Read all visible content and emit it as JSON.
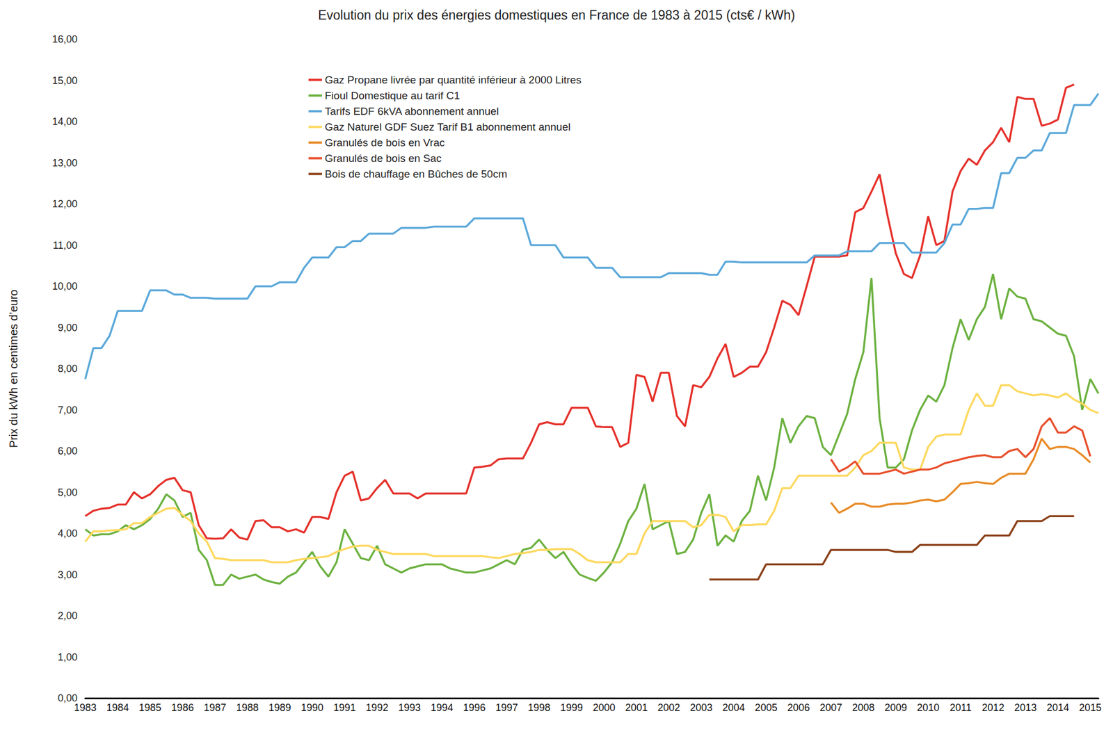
{
  "chart_data": {
    "type": "line",
    "title": "Evolution du prix des énergies domestiques en France de 1983 à 2015 (cts€ / kWh)",
    "y_label": "Prix du kWh en centimes d’euro",
    "categories": [
      "1983",
      null,
      null,
      null,
      "1984",
      null,
      null,
      null,
      "1985",
      null,
      null,
      null,
      "1986",
      null,
      null,
      null,
      "1987",
      null,
      null,
      null,
      "1988",
      null,
      null,
      null,
      "1989",
      null,
      null,
      null,
      "1990",
      null,
      null,
      null,
      "1991",
      null,
      null,
      null,
      "1992",
      null,
      null,
      null,
      "1993",
      null,
      null,
      null,
      "1994",
      null,
      null,
      null,
      "1996",
      null,
      null,
      null,
      "1997",
      null,
      null,
      null,
      "1998",
      null,
      null,
      null,
      "1999",
      null,
      null,
      null,
      "2000",
      null,
      null,
      null,
      "2001",
      null,
      null,
      null,
      "2002",
      null,
      null,
      null,
      "2003",
      null,
      null,
      null,
      "2004",
      null,
      null,
      null,
      "2005",
      null,
      null,
      null,
      "2006",
      null,
      null,
      null,
      "2007",
      null,
      null,
      null,
      "2008",
      null,
      null,
      null,
      "2009",
      null,
      null,
      null,
      "2010",
      null,
      null,
      null,
      "2011",
      null,
      null,
      null,
      "2012",
      null,
      null,
      null,
      "2013",
      null,
      null,
      null,
      "2014",
      null,
      null,
      null,
      "2015",
      null
    ],
    "series": [
      {
        "name": "Gaz Propane livrée par quantité inférieur à 2000 Litres",
        "color": "#e5302a",
        "values": [
          4.42,
          4.55,
          4.6,
          4.62,
          4.7,
          4.7,
          5.0,
          4.85,
          4.95,
          5.15,
          5.3,
          5.35,
          5.05,
          5.0,
          4.2,
          3.88,
          3.87,
          3.88,
          4.1,
          3.9,
          3.85,
          4.3,
          4.32,
          4.15,
          4.15,
          4.05,
          4.1,
          4.02,
          4.4,
          4.4,
          4.35,
          5.0,
          5.4,
          5.5,
          4.8,
          4.85,
          5.1,
          5.3,
          4.97,
          4.97,
          4.97,
          4.85,
          4.97,
          4.97,
          4.97,
          4.97,
          4.97,
          4.97,
          5.6,
          5.62,
          5.65,
          5.8,
          5.82,
          5.82,
          5.82,
          6.2,
          6.65,
          6.7,
          6.65,
          6.65,
          7.05,
          7.05,
          7.05,
          6.6,
          6.58,
          6.58,
          6.1,
          6.2,
          7.85,
          7.8,
          7.2,
          7.9,
          7.9,
          6.85,
          6.6,
          7.6,
          7.55,
          7.8,
          8.25,
          8.6,
          7.8,
          7.9,
          8.05,
          8.05,
          8.4,
          9.0,
          9.65,
          9.55,
          9.3,
          10.0,
          10.72,
          10.72,
          10.72,
          10.72,
          10.75,
          11.8,
          11.9,
          12.3,
          12.72,
          11.7,
          10.8,
          10.3,
          10.2,
          10.75,
          11.7,
          11.0,
          11.1,
          12.3,
          12.8,
          13.1,
          12.95,
          13.3,
          13.5,
          13.85,
          13.5,
          14.6,
          14.55,
          14.55,
          13.9,
          13.95,
          14.05,
          14.82,
          14.9,
          null,
          null,
          null
        ]
      },
      {
        "name": "Fioul Domestique au tarif C1",
        "color": "#6bb13f",
        "values": [
          4.1,
          3.95,
          3.98,
          3.98,
          4.05,
          4.2,
          4.1,
          4.2,
          4.35,
          4.6,
          4.95,
          4.8,
          4.4,
          4.5,
          3.6,
          3.35,
          2.75,
          2.75,
          3.0,
          2.9,
          2.95,
          3.0,
          2.88,
          2.82,
          2.78,
          2.95,
          3.05,
          3.3,
          3.55,
          3.2,
          2.95,
          3.3,
          4.1,
          3.75,
          3.4,
          3.35,
          3.7,
          3.25,
          3.15,
          3.05,
          3.15,
          3.2,
          3.25,
          3.25,
          3.25,
          3.15,
          3.1,
          3.05,
          3.05,
          3.1,
          3.15,
          3.25,
          3.35,
          3.25,
          3.6,
          3.65,
          3.85,
          3.6,
          3.4,
          3.55,
          3.25,
          3.0,
          2.92,
          2.85,
          3.05,
          3.3,
          3.75,
          4.3,
          4.6,
          5.2,
          4.1,
          4.2,
          4.3,
          3.5,
          3.55,
          3.85,
          4.5,
          4.95,
          3.7,
          3.95,
          3.8,
          4.3,
          4.55,
          5.4,
          4.8,
          5.6,
          6.8,
          6.2,
          6.6,
          6.85,
          6.8,
          6.1,
          5.9,
          6.4,
          6.9,
          7.75,
          8.4,
          10.2,
          6.8,
          5.6,
          5.6,
          5.8,
          6.5,
          7.0,
          7.35,
          7.2,
          7.6,
          8.5,
          9.2,
          8.7,
          9.2,
          9.5,
          10.3,
          9.2,
          9.95,
          9.75,
          9.7,
          9.2,
          9.15,
          9.0,
          8.85,
          8.8,
          8.3,
          7.0,
          7.75,
          7.4
        ]
      },
      {
        "name": "Tarifs EDF 6kVA abonnement annuel",
        "color": "#5ba8da",
        "values": [
          7.75,
          8.5,
          8.5,
          8.8,
          9.4,
          9.4,
          9.4,
          9.4,
          9.9,
          9.9,
          9.9,
          9.8,
          9.8,
          9.72,
          9.72,
          9.72,
          9.7,
          9.7,
          9.7,
          9.7,
          9.7,
          10.0,
          10.0,
          10.0,
          10.1,
          10.1,
          10.1,
          10.45,
          10.7,
          10.7,
          10.7,
          10.95,
          10.95,
          11.1,
          11.1,
          11.28,
          11.28,
          11.28,
          11.28,
          11.42,
          11.42,
          11.42,
          11.42,
          11.45,
          11.45,
          11.45,
          11.45,
          11.45,
          11.65,
          11.65,
          11.65,
          11.65,
          11.65,
          11.65,
          11.65,
          11.0,
          11.0,
          11.0,
          11.0,
          10.7,
          10.7,
          10.7,
          10.7,
          10.45,
          10.45,
          10.45,
          10.22,
          10.22,
          10.22,
          10.22,
          10.22,
          10.22,
          10.32,
          10.32,
          10.32,
          10.32,
          10.32,
          10.28,
          10.28,
          10.6,
          10.6,
          10.58,
          10.58,
          10.58,
          10.58,
          10.58,
          10.58,
          10.58,
          10.58,
          10.58,
          10.75,
          10.75,
          10.75,
          10.75,
          10.85,
          10.85,
          10.85,
          10.85,
          11.05,
          11.05,
          11.05,
          11.05,
          10.82,
          10.82,
          10.82,
          10.82,
          11.05,
          11.5,
          11.5,
          11.88,
          11.88,
          11.9,
          11.9,
          12.75,
          12.75,
          13.12,
          13.12,
          13.3,
          13.3,
          13.72,
          13.72,
          13.72,
          14.4,
          14.4,
          14.4,
          14.68
        ]
      },
      {
        "name": "Gaz Naturel GDF Suez Tarif B1 abonnement annuel",
        "color": "#fdd85d",
        "values": [
          3.8,
          4.05,
          4.05,
          4.07,
          4.08,
          4.1,
          4.25,
          4.25,
          4.4,
          4.5,
          4.6,
          4.62,
          4.45,
          4.3,
          4.0,
          3.8,
          3.4,
          3.38,
          3.35,
          3.35,
          3.35,
          3.35,
          3.35,
          3.3,
          3.3,
          3.3,
          3.35,
          3.38,
          3.4,
          3.42,
          3.45,
          3.55,
          3.62,
          3.68,
          3.7,
          3.7,
          3.6,
          3.55,
          3.5,
          3.5,
          3.5,
          3.5,
          3.5,
          3.45,
          3.45,
          3.45,
          3.45,
          3.45,
          3.45,
          3.45,
          3.42,
          3.4,
          3.45,
          3.5,
          3.52,
          3.55,
          3.6,
          3.6,
          3.62,
          3.62,
          3.62,
          3.5,
          3.35,
          3.3,
          3.3,
          3.3,
          3.3,
          3.5,
          3.5,
          4.0,
          4.3,
          4.3,
          4.3,
          4.3,
          4.3,
          4.15,
          4.2,
          4.45,
          4.45,
          4.4,
          4.05,
          4.2,
          4.2,
          4.22,
          4.22,
          4.55,
          5.1,
          5.1,
          5.4,
          5.4,
          5.4,
          5.4,
          5.4,
          5.4,
          5.4,
          5.6,
          5.9,
          6.0,
          6.2,
          6.2,
          6.2,
          5.6,
          5.55,
          5.55,
          6.1,
          6.35,
          6.4,
          6.4,
          6.4,
          7.0,
          7.4,
          7.1,
          7.1,
          7.6,
          7.6,
          7.45,
          7.4,
          7.35,
          7.38,
          7.35,
          7.3,
          7.4,
          7.25,
          7.15,
          7.0,
          6.92
        ]
      },
      {
        "name": "Granulés de bois en Vrac",
        "color": "#e88a26",
        "values": [
          null,
          null,
          null,
          null,
          null,
          null,
          null,
          null,
          null,
          null,
          null,
          null,
          null,
          null,
          null,
          null,
          null,
          null,
          null,
          null,
          null,
          null,
          null,
          null,
          null,
          null,
          null,
          null,
          null,
          null,
          null,
          null,
          null,
          null,
          null,
          null,
          null,
          null,
          null,
          null,
          null,
          null,
          null,
          null,
          null,
          null,
          null,
          null,
          null,
          null,
          null,
          null,
          null,
          null,
          null,
          null,
          null,
          null,
          null,
          null,
          null,
          null,
          null,
          null,
          null,
          null,
          null,
          null,
          null,
          null,
          null,
          null,
          null,
          null,
          null,
          null,
          null,
          null,
          null,
          null,
          null,
          null,
          null,
          null,
          null,
          null,
          null,
          null,
          null,
          null,
          null,
          null,
          4.75,
          4.5,
          4.6,
          4.72,
          4.72,
          4.65,
          4.65,
          4.7,
          4.72,
          4.72,
          4.75,
          4.8,
          4.82,
          4.78,
          4.82,
          5.0,
          5.2,
          5.22,
          5.25,
          5.22,
          5.2,
          5.35,
          5.45,
          5.45,
          5.45,
          5.8,
          6.3,
          6.05,
          6.1,
          6.1,
          6.05,
          5.9,
          5.72,
          null
        ]
      },
      {
        "name": "Granulés de bois en Sac",
        "color": "#e84f2c",
        "values": [
          null,
          null,
          null,
          null,
          null,
          null,
          null,
          null,
          null,
          null,
          null,
          null,
          null,
          null,
          null,
          null,
          null,
          null,
          null,
          null,
          null,
          null,
          null,
          null,
          null,
          null,
          null,
          null,
          null,
          null,
          null,
          null,
          null,
          null,
          null,
          null,
          null,
          null,
          null,
          null,
          null,
          null,
          null,
          null,
          null,
          null,
          null,
          null,
          null,
          null,
          null,
          null,
          null,
          null,
          null,
          null,
          null,
          null,
          null,
          null,
          null,
          null,
          null,
          null,
          null,
          null,
          null,
          null,
          null,
          null,
          null,
          null,
          null,
          null,
          null,
          null,
          null,
          null,
          null,
          null,
          null,
          null,
          null,
          null,
          null,
          null,
          null,
          null,
          null,
          null,
          null,
          null,
          5.8,
          5.5,
          5.6,
          5.75,
          5.45,
          5.45,
          5.45,
          5.5,
          5.55,
          5.45,
          5.5,
          5.55,
          5.55,
          5.6,
          5.7,
          5.75,
          5.8,
          5.85,
          5.88,
          5.9,
          5.85,
          5.85,
          6.0,
          6.05,
          5.85,
          6.05,
          6.6,
          6.8,
          6.45,
          6.45,
          6.6,
          6.5,
          5.87,
          null
        ]
      },
      {
        "name": "Bois de chauffage en Bûches de 50cm",
        "color": "#8a3f17",
        "values": [
          null,
          null,
          null,
          null,
          null,
          null,
          null,
          null,
          null,
          null,
          null,
          null,
          null,
          null,
          null,
          null,
          null,
          null,
          null,
          null,
          null,
          null,
          null,
          null,
          null,
          null,
          null,
          null,
          null,
          null,
          null,
          null,
          null,
          null,
          null,
          null,
          null,
          null,
          null,
          null,
          null,
          null,
          null,
          null,
          null,
          null,
          null,
          null,
          null,
          null,
          null,
          null,
          null,
          null,
          null,
          null,
          null,
          null,
          null,
          null,
          null,
          null,
          null,
          null,
          null,
          null,
          null,
          null,
          null,
          null,
          null,
          null,
          null,
          null,
          null,
          null,
          null,
          2.88,
          2.88,
          2.88,
          2.88,
          2.88,
          2.88,
          2.88,
          3.25,
          3.25,
          3.25,
          3.25,
          3.25,
          3.25,
          3.25,
          3.25,
          3.6,
          3.6,
          3.6,
          3.6,
          3.6,
          3.6,
          3.6,
          3.6,
          3.55,
          3.55,
          3.55,
          3.72,
          3.72,
          3.72,
          3.72,
          3.72,
          3.72,
          3.72,
          3.72,
          3.95,
          3.95,
          3.95,
          3.95,
          4.3,
          4.3,
          4.3,
          4.3,
          4.42,
          4.42,
          4.42,
          4.42,
          null,
          null,
          null
        ]
      }
    ],
    "ylim": [
      0,
      16
    ],
    "yticks": [
      {
        "value": 0,
        "label": "0,00"
      },
      {
        "value": 1,
        "label": "1,00"
      },
      {
        "value": 2,
        "label": "2,00"
      },
      {
        "value": 3,
        "label": "3,00"
      },
      {
        "value": 4,
        "label": "4,00"
      },
      {
        "value": 5,
        "label": "5,00"
      },
      {
        "value": 6,
        "label": "6,00"
      },
      {
        "value": 7,
        "label": "7,00"
      },
      {
        "value": 8,
        "label": "8,00"
      },
      {
        "value": 9,
        "label": "9,00"
      },
      {
        "value": 10,
        "label": "10,00"
      },
      {
        "value": 11,
        "label": "11,00"
      },
      {
        "value": 12,
        "label": "12,00"
      },
      {
        "value": 13,
        "label": "13,00"
      },
      {
        "value": 14,
        "label": "14,00"
      },
      {
        "value": 15,
        "label": "15,00"
      },
      {
        "value": 16,
        "label": "16,00"
      }
    ],
    "grid": false,
    "legend": "upper left"
  }
}
